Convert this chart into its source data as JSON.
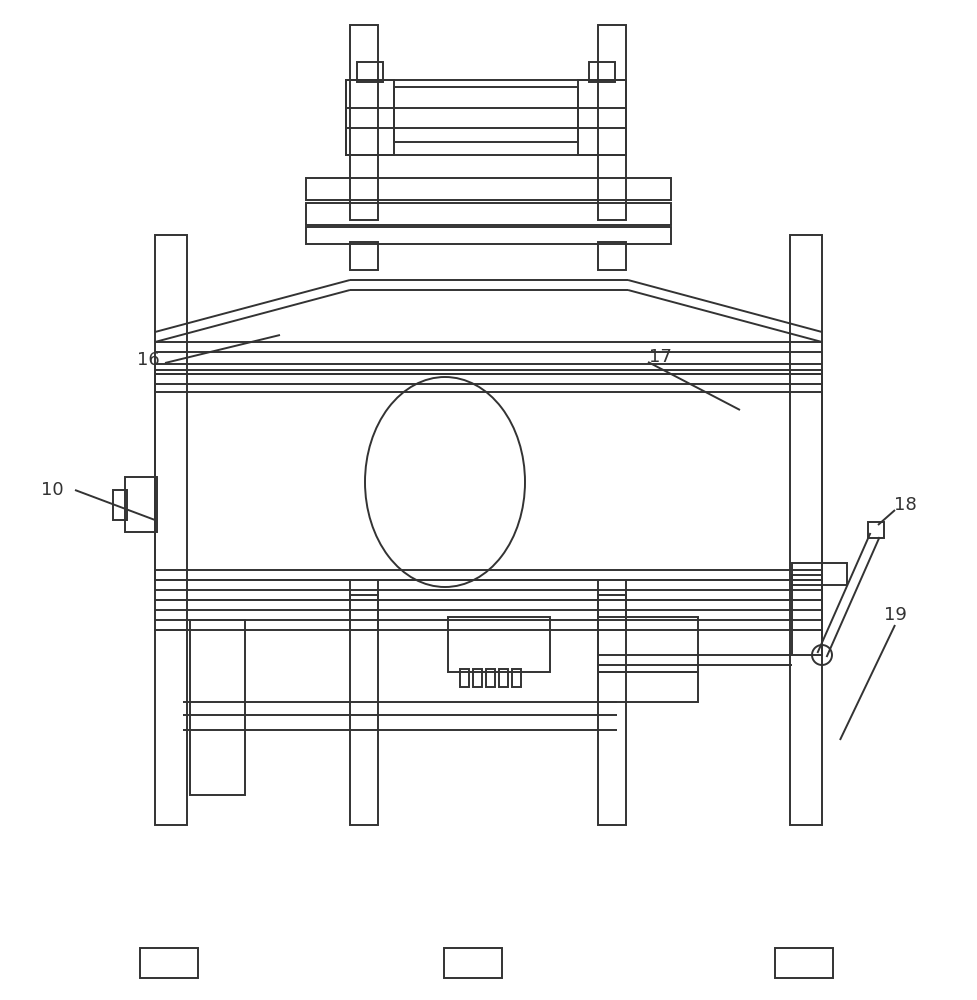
{
  "bg_color": "#ffffff",
  "lc": "#333333",
  "lw": 1.4,
  "label_fontsize": 13
}
